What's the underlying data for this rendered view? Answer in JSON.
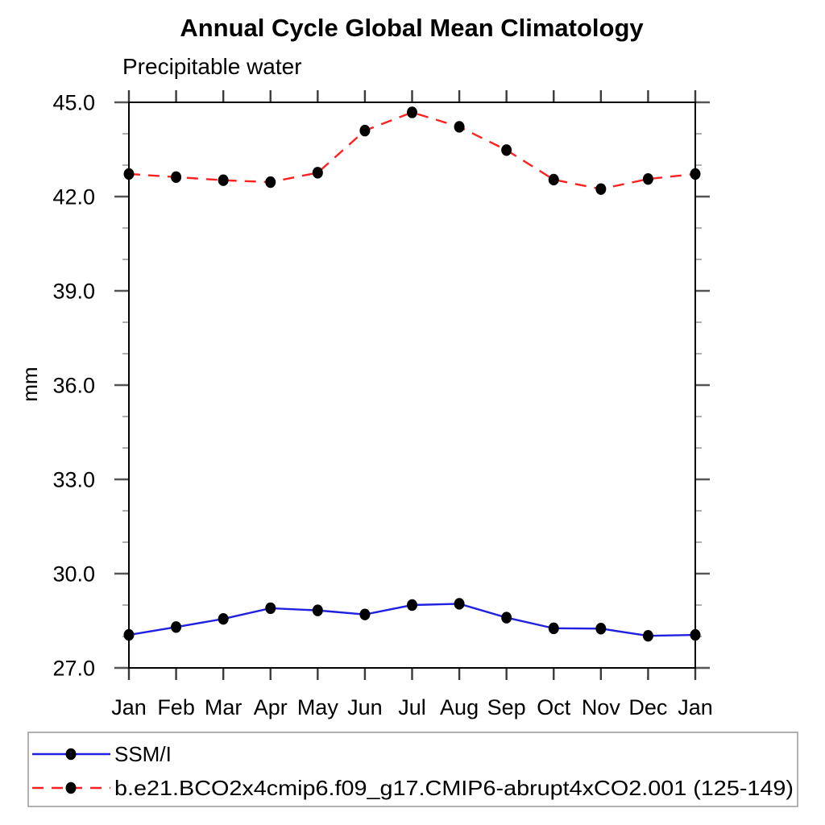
{
  "chart_data": {
    "type": "line",
    "title": "Annual Cycle Global Mean Climatology",
    "subtitle": "Precipitable water",
    "ylabel": "mm",
    "categories": [
      "Jan",
      "Feb",
      "Mar",
      "Apr",
      "May",
      "Jun",
      "Jul",
      "Aug",
      "Sep",
      "Oct",
      "Nov",
      "Dec",
      "Jan"
    ],
    "ylim": [
      27.0,
      45.0
    ],
    "ytick_major_step": 3.0,
    "ytick_minor_step": 1.0,
    "ytick_labels": [
      "27.0",
      "30.0",
      "33.0",
      "36.0",
      "39.0",
      "42.0",
      "45.0"
    ],
    "grid": false,
    "legend_position": "bottom",
    "series": [
      {
        "name": "SSM/I",
        "line_style": "solid",
        "color": "#2020e0",
        "marker": "black-dot",
        "values": [
          28.05,
          28.3,
          28.56,
          28.9,
          28.83,
          28.7,
          29.0,
          29.04,
          28.6,
          28.26,
          28.25,
          28.02,
          28.05
        ]
      },
      {
        "name": "b.e21.BCO2x4cmip6.f09_g17.CMIP6-abrupt4xCO2.001 (125-149)",
        "line_style": "dashed",
        "color": "#ff2020",
        "marker": "black-dot",
        "values": [
          42.72,
          42.62,
          42.52,
          42.46,
          42.76,
          44.1,
          44.68,
          44.22,
          43.48,
          42.54,
          42.24,
          42.56,
          42.72
        ]
      }
    ],
    "colors": {
      "frame": "#000000",
      "major_tick": "#555555",
      "minor_tick": "#a6a6a6",
      "month_tick": "#3a3a3a",
      "legend_border": "#999999",
      "marker": "#000000"
    }
  }
}
